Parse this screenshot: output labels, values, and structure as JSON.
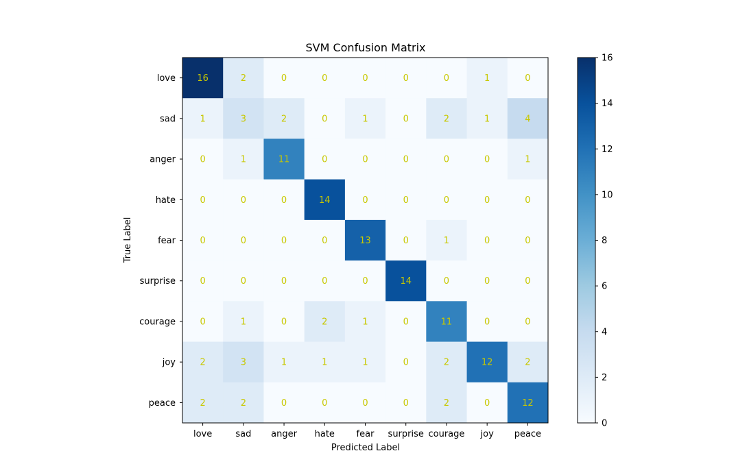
{
  "chart_data": {
    "type": "heatmap",
    "title": "SVM Confusion Matrix",
    "xlabel": "Predicted Label",
    "ylabel": "True Label",
    "x_categories": [
      "love",
      "sad",
      "anger",
      "hate",
      "fear",
      "surprise",
      "courage",
      "joy",
      "peace"
    ],
    "y_categories": [
      "love",
      "sad",
      "anger",
      "hate",
      "fear",
      "surprise",
      "courage",
      "joy",
      "peace"
    ],
    "matrix": [
      [
        16,
        2,
        0,
        0,
        0,
        0,
        0,
        1,
        0
      ],
      [
        1,
        3,
        2,
        0,
        1,
        0,
        2,
        1,
        4
      ],
      [
        0,
        1,
        11,
        0,
        0,
        0,
        0,
        0,
        1
      ],
      [
        0,
        0,
        0,
        14,
        0,
        0,
        0,
        0,
        0
      ],
      [
        0,
        0,
        0,
        0,
        13,
        0,
        1,
        0,
        0
      ],
      [
        0,
        0,
        0,
        0,
        0,
        14,
        0,
        0,
        0
      ],
      [
        0,
        1,
        0,
        2,
        1,
        0,
        11,
        0,
        0
      ],
      [
        2,
        3,
        1,
        1,
        1,
        0,
        2,
        12,
        2
      ],
      [
        2,
        2,
        0,
        0,
        0,
        0,
        2,
        0,
        12
      ]
    ],
    "colormap": "Blues",
    "value_text_color": "#c8c800",
    "colorbar": {
      "min": 0,
      "max": 16,
      "ticks": [
        0,
        2,
        4,
        6,
        8,
        10,
        12,
        14,
        16
      ]
    }
  }
}
